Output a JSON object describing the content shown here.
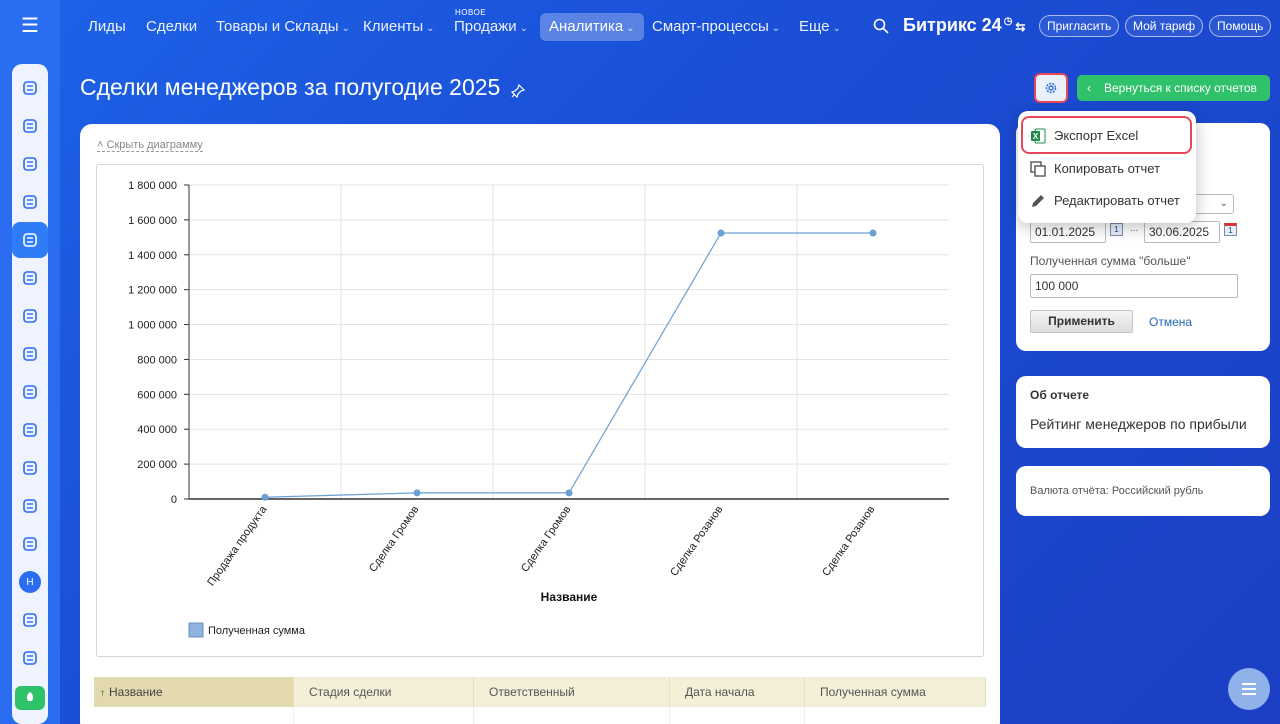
{
  "nav": {
    "items": [
      {
        "label": "Лиды",
        "chevron": false
      },
      {
        "label": "Сделки",
        "chevron": false
      },
      {
        "label": "Товары и Склады",
        "chevron": true
      },
      {
        "label": "Клиенты",
        "chevron": true
      },
      {
        "label": "Продажи",
        "chevron": true,
        "badge": "НОВОЕ"
      },
      {
        "label": "Аналитика",
        "chevron": true,
        "active": true
      },
      {
        "label": "Смарт-процессы",
        "chevron": true
      },
      {
        "label": "Еще",
        "chevron": true
      }
    ],
    "chevron_glyph": "⌄",
    "brand": "Битрикс 24",
    "invite": "Пригласить",
    "my_plan": "Мой тариф",
    "help": "Помощь"
  },
  "page": {
    "title": "Сделки менеджеров за полугодие 2025",
    "back_button": "Вернуться к списку отчетов",
    "hide_chart": "Скрыть диаграмму"
  },
  "menu": {
    "items": [
      {
        "label": "Экспорт Excel",
        "icon": "excel-icon"
      },
      {
        "label": "Копировать отчет",
        "icon": "copy-icon"
      },
      {
        "label": "Редактировать отчет",
        "icon": "pencil-icon"
      }
    ]
  },
  "filter": {
    "date_from": "01.01.2025",
    "date_to": "30.06.2025",
    "date_separator": "...",
    "amount_label": "Полученная сумма \"больше\"",
    "amount_value": "100 000",
    "apply": "Применить",
    "cancel": "Отмена"
  },
  "about": {
    "title": "Об отчете",
    "text": "Рейтинг менеджеров по прибыли"
  },
  "currency": "Валюта отчёта: Российский рубль",
  "table": {
    "headers": [
      "Название",
      "Стадия сделки",
      "Ответственный",
      "Дата начала",
      "Полученная сумма"
    ],
    "sorted_marker": "↑"
  },
  "colors": {
    "accent_green": "#2fc26b",
    "highlight_red": "#e8475a",
    "series_blue": "#6a9fd4"
  },
  "chart_data": {
    "type": "line",
    "categories": [
      "Продажа продукта",
      "Сделка Громов",
      "Сделка Громов",
      "Сделка Розанов",
      "Сделка Розанов"
    ],
    "series": [
      {
        "name": "Полученная сумма",
        "values": [
          10000,
          35000,
          35000,
          1525000,
          1525000
        ]
      }
    ],
    "xlabel": "Название",
    "ylabel": "",
    "ylim": [
      0,
      1800000
    ],
    "yticks": [
      "0",
      "200 000",
      "400 000",
      "600 000",
      "800 000",
      "1 000 000",
      "1 200 000",
      "1 400 000",
      "1 600 000",
      "1 800 000"
    ],
    "grid": true,
    "legend": "bottom-left"
  }
}
